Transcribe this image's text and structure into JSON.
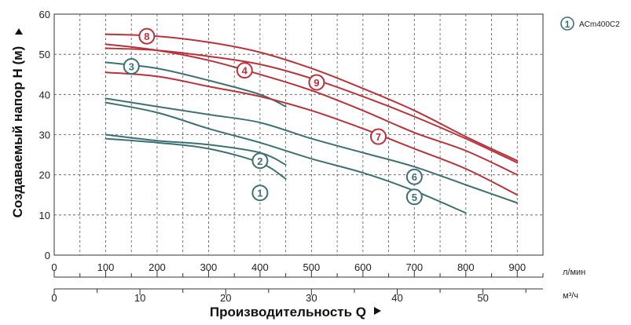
{
  "chart_data": {
    "type": "line",
    "ylabel": "Создаваемый напор H (м)",
    "xlabel": "Производительность Q",
    "x_unit_primary": "л/мин",
    "x_unit_secondary": "м³/ч",
    "ylim": [
      0,
      60
    ],
    "yticks": [
      0,
      10,
      20,
      30,
      40,
      50,
      60
    ],
    "xlim": [
      0,
      950
    ],
    "xticks_primary": [
      0,
      100,
      200,
      300,
      400,
      500,
      600,
      700,
      800,
      900
    ],
    "xticks_secondary": [
      0,
      10,
      20,
      30,
      40,
      50
    ],
    "grid": true,
    "legend": {
      "number": "1",
      "text": "ACm400C2",
      "position": "top-right"
    },
    "series": [
      {
        "name": "1",
        "color": "#3e6f73",
        "label_at": [
          400,
          15.5
        ],
        "points": [
          [
            100,
            29
          ],
          [
            200,
            28
          ],
          [
            300,
            26.5
          ],
          [
            400,
            23
          ],
          [
            450,
            19
          ]
        ]
      },
      {
        "name": "2",
        "color": "#3e6f73",
        "label_at": [
          400,
          23.5
        ],
        "points": [
          [
            100,
            30
          ],
          [
            200,
            28.5
          ],
          [
            300,
            27.5
          ],
          [
            400,
            25.5
          ],
          [
            450,
            22.5
          ]
        ]
      },
      {
        "name": "3",
        "color": "#3e6f73",
        "label_at": [
          150,
          47
        ],
        "points": [
          [
            100,
            48
          ],
          [
            200,
            46.5
          ],
          [
            300,
            43.5
          ],
          [
            400,
            40
          ],
          [
            450,
            37
          ]
        ]
      },
      {
        "name": "5",
        "color": "#3e6f73",
        "label_at": [
          700,
          14.5
        ],
        "points": [
          [
            100,
            38
          ],
          [
            200,
            35.5
          ],
          [
            300,
            31.5
          ],
          [
            400,
            28
          ],
          [
            500,
            24
          ],
          [
            600,
            20.5
          ],
          [
            700,
            16
          ],
          [
            800,
            10.5
          ]
        ]
      },
      {
        "name": "6",
        "color": "#3e6f73",
        "label_at": [
          700,
          19.5
        ],
        "points": [
          [
            100,
            39
          ],
          [
            200,
            37
          ],
          [
            300,
            35
          ],
          [
            400,
            33
          ],
          [
            500,
            29
          ],
          [
            600,
            25.5
          ],
          [
            700,
            22
          ],
          [
            800,
            17.5
          ],
          [
            900,
            13
          ]
        ]
      },
      {
        "name": "4",
        "color": "#b8323a",
        "label_at": [
          370,
          46
        ],
        "points": [
          [
            100,
            52.5
          ],
          [
            200,
            51
          ],
          [
            300,
            48.5
          ],
          [
            400,
            45
          ],
          [
            500,
            41
          ],
          [
            600,
            36
          ],
          [
            700,
            30.5
          ],
          [
            800,
            26
          ],
          [
            900,
            20
          ]
        ]
      },
      {
        "name": "7",
        "color": "#b8323a",
        "label_at": [
          630,
          29.5
        ],
        "points": [
          [
            100,
            45.5
          ],
          [
            200,
            44.5
          ],
          [
            300,
            42
          ],
          [
            400,
            39.5
          ],
          [
            500,
            36
          ],
          [
            600,
            31.5
          ],
          [
            700,
            26.5
          ],
          [
            800,
            21.5
          ],
          [
            900,
            15
          ]
        ]
      },
      {
        "name": "8",
        "color": "#b8323a",
        "label_at": [
          180,
          54.5
        ],
        "points": [
          [
            100,
            55
          ],
          [
            200,
            54.5
          ],
          [
            300,
            53
          ],
          [
            400,
            50.5
          ],
          [
            500,
            46.5
          ],
          [
            600,
            41.5
          ],
          [
            700,
            36
          ],
          [
            800,
            29.5
          ],
          [
            900,
            23.5
          ]
        ]
      },
      {
        "name": "9",
        "color": "#b8323a",
        "label_at": [
          510,
          43
        ],
        "points": [
          [
            100,
            51.5
          ],
          [
            200,
            51
          ],
          [
            300,
            49.5
          ],
          [
            400,
            47.5
          ],
          [
            500,
            44
          ],
          [
            600,
            39.5
          ],
          [
            700,
            34.5
          ],
          [
            800,
            29
          ],
          [
            900,
            23
          ]
        ]
      }
    ]
  }
}
